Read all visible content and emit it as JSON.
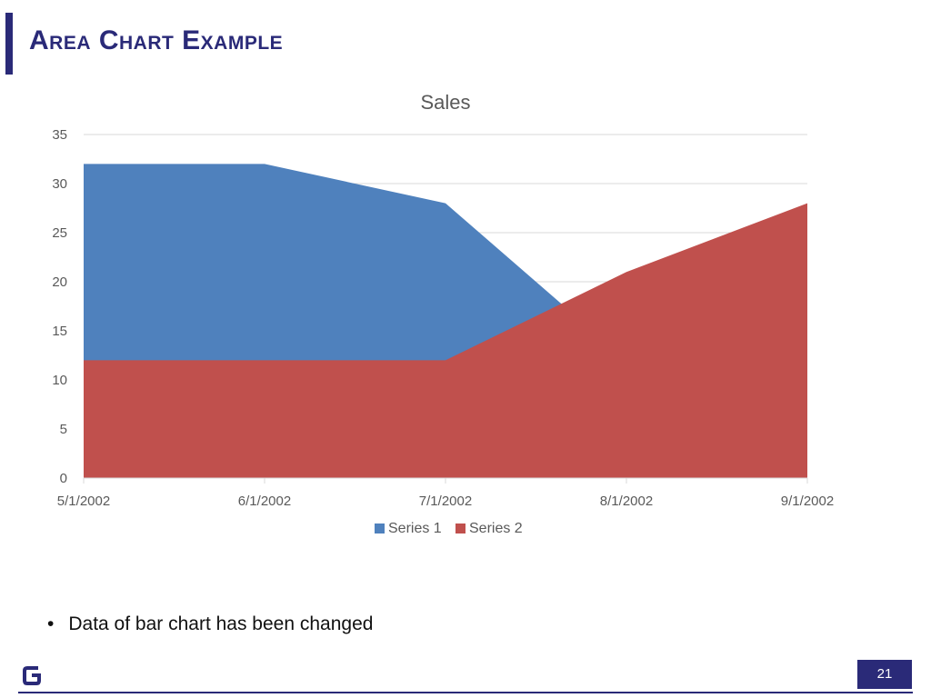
{
  "slide": {
    "title": "Area Chart Example",
    "bullet_symbol": "•",
    "bullet_text": "Data of bar chart has been changed",
    "page_number": "21",
    "logo_letter": "G",
    "brand_color": "#2a2a78"
  },
  "chart_data": {
    "type": "area",
    "title": "Sales",
    "xlabel": "",
    "ylabel": "",
    "x": [
      "5/1/2002",
      "6/1/2002",
      "7/1/2002",
      "8/1/2002",
      "9/1/2002"
    ],
    "series": [
      {
        "name": "Series 1",
        "values": [
          32,
          32,
          28,
          12,
          12
        ],
        "color": "#4f81bd"
      },
      {
        "name": "Series 2",
        "values": [
          12,
          12,
          12,
          21,
          28
        ],
        "color": "#c0504d"
      }
    ],
    "ylim": [
      0,
      35
    ],
    "yticks": [
      0,
      5,
      10,
      15,
      20,
      25,
      30,
      35
    ],
    "grid": true,
    "legend_position": "bottom"
  }
}
